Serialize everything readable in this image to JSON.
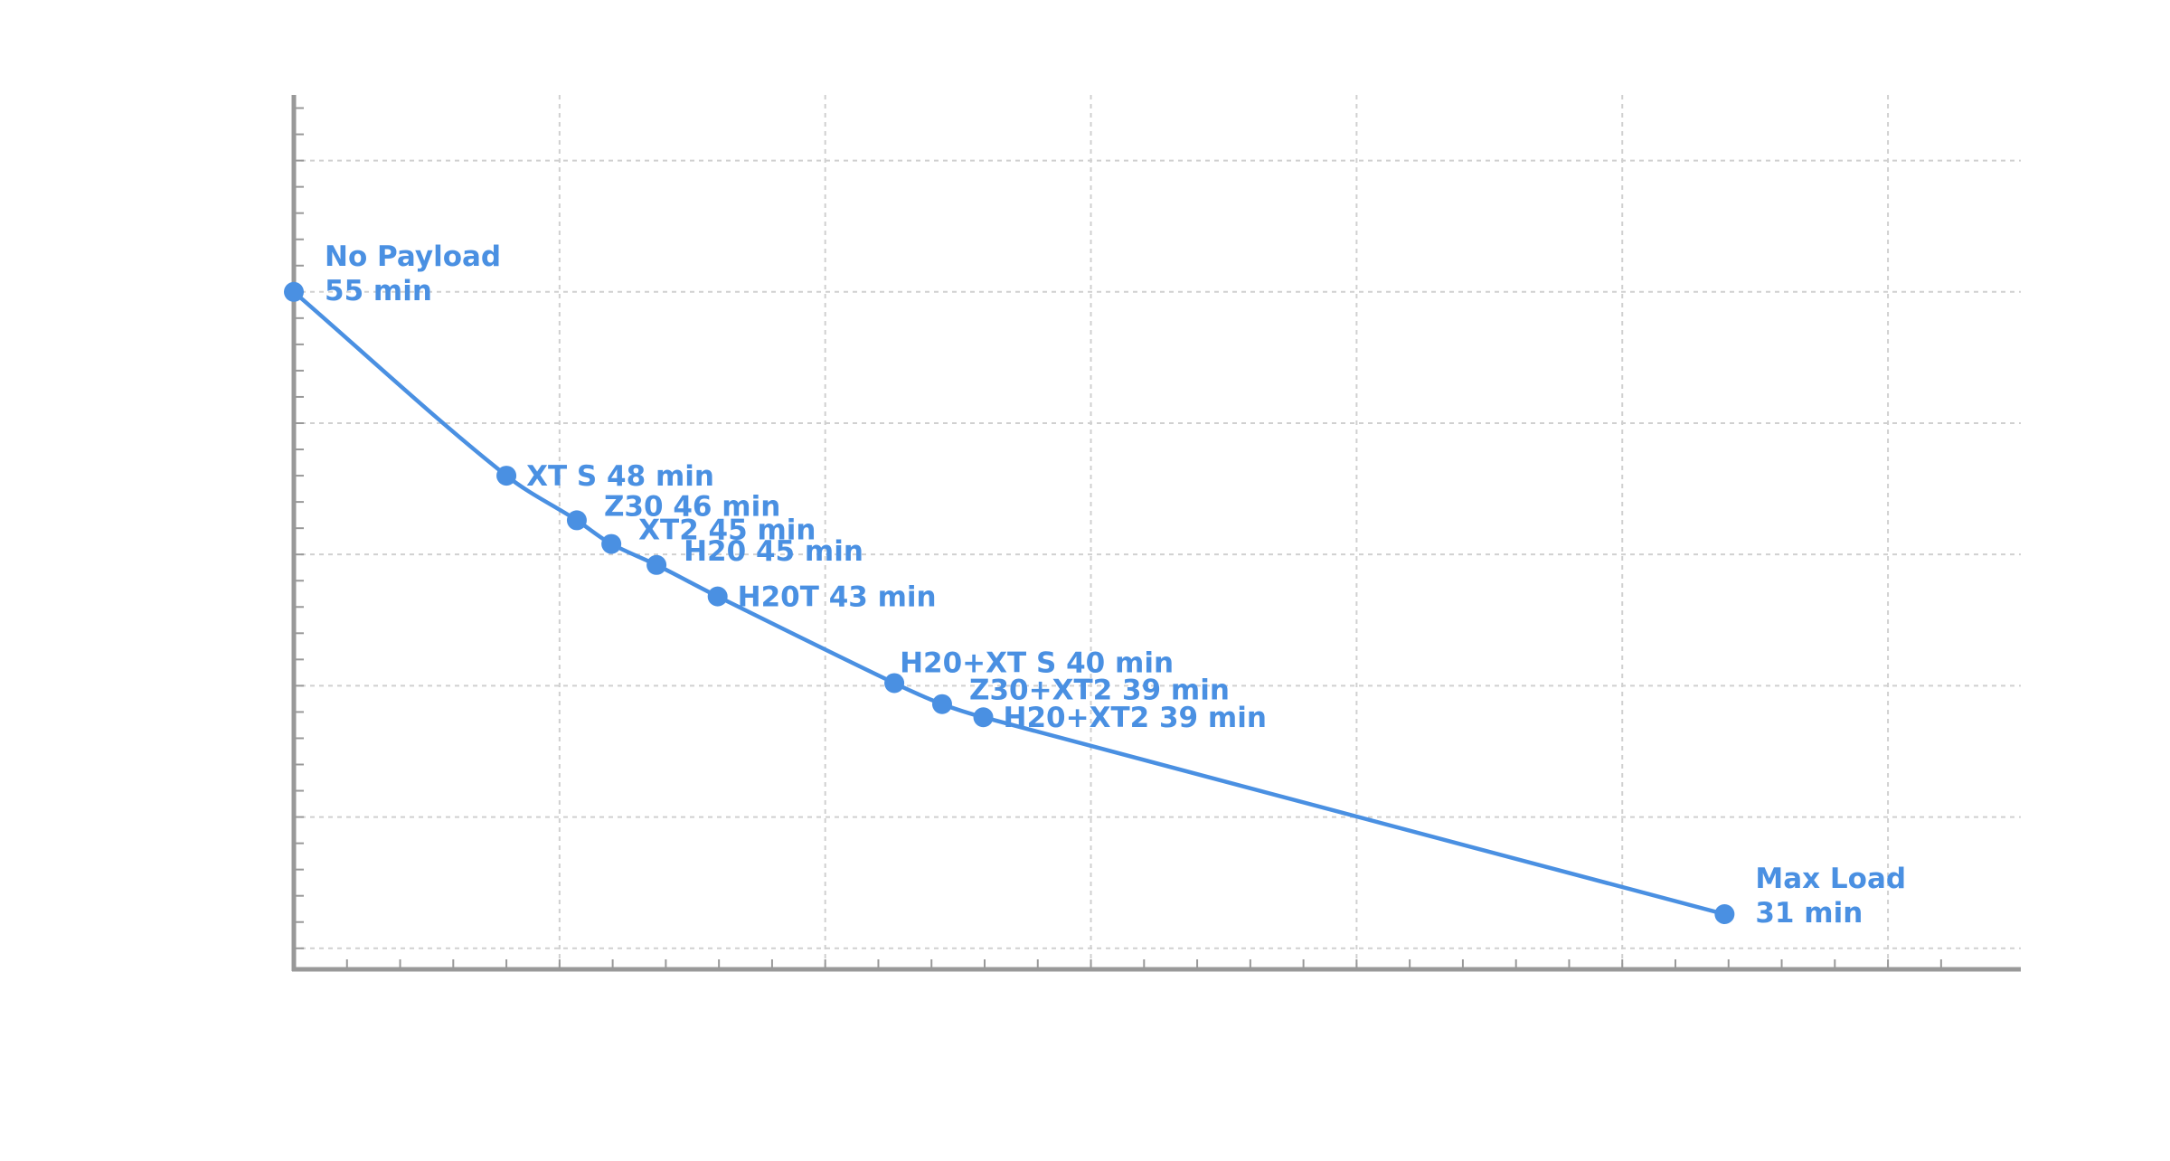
{
  "colors": {
    "accent": "#4A90E2",
    "axis": "#999999",
    "grid": "#D0D0D0",
    "background": "#FFFFFF"
  },
  "chart_data": {
    "type": "line",
    "title": "",
    "xlabel": "",
    "ylabel": "",
    "grid": true,
    "legend": "none",
    "x_unit": "payload (relative)",
    "y_unit": "minutes",
    "xlim": [
      0,
      13
    ],
    "ylim": [
      29.2,
      62.5
    ],
    "x_gridlines": [
      0,
      2,
      4,
      6,
      8,
      10,
      12
    ],
    "y_gridlines": [
      30,
      35,
      40,
      45,
      50,
      55,
      60
    ],
    "series": [
      {
        "name": "",
        "points": [
          {
            "x": 0.0,
            "y": 55,
            "label_lines": [
              "No Payload",
              "55 min"
            ],
            "anchor": "above-right"
          },
          {
            "x": 1.6,
            "y": 48,
            "label_lines": [
              "XT S 48 min"
            ],
            "anchor": "right"
          },
          {
            "x": 2.13,
            "y": 46.3,
            "label_lines": [
              "Z30 46 min"
            ],
            "anchor": "above-right"
          },
          {
            "x": 2.39,
            "y": 45.4,
            "label_lines": [
              "XT2 45 min"
            ],
            "anchor": "above-right"
          },
          {
            "x": 2.73,
            "y": 44.6,
            "label_lines": [
              "H20 45 min"
            ],
            "anchor": "above-right"
          },
          {
            "x": 3.19,
            "y": 43.4,
            "label_lines": [
              "H20T 43 min"
            ],
            "anchor": "right"
          },
          {
            "x": 4.52,
            "y": 40.1,
            "label_lines": [
              "H20+XT S 40 min"
            ],
            "anchor": "above"
          },
          {
            "x": 4.88,
            "y": 39.3,
            "label_lines": [
              "Z30+XT2 39 min"
            ],
            "anchor": "above-right"
          },
          {
            "x": 5.19,
            "y": 38.8,
            "label_lines": [
              "H20+XT2 39 min"
            ],
            "anchor": "right"
          },
          {
            "x": 10.77,
            "y": 31.3,
            "label_lines": [
              "Max Load",
              "31 min"
            ],
            "anchor": "above-right"
          }
        ]
      }
    ]
  }
}
